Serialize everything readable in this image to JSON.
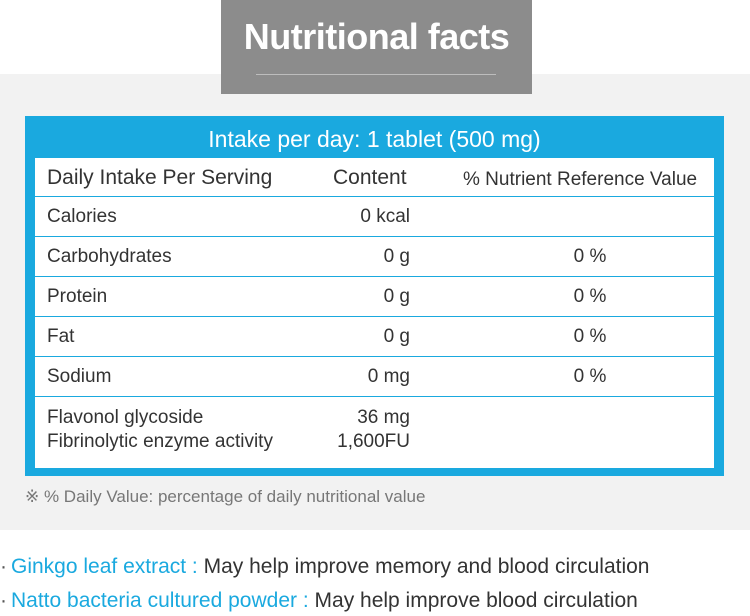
{
  "title": "Nutritional facts",
  "intake_label": "Intake per day: 1 tablet (500 mg)",
  "table": {
    "headers": [
      "Daily Intake Per Serving",
      "Content",
      "% Nutrient Reference Value"
    ],
    "rows": [
      {
        "name": "Calories",
        "content": "0 kcal",
        "pct": ""
      },
      {
        "name": "Carbohydrates",
        "content": "0 g",
        "pct": "0 %"
      },
      {
        "name": "Protein",
        "content": "0 g",
        "pct": "0 %"
      },
      {
        "name": "Fat",
        "content": "0 g",
        "pct": "0 %"
      },
      {
        "name": "Sodium",
        "content": "0 mg",
        "pct": "0 %"
      },
      {
        "name": "Flavonol glycoside",
        "content": "36 mg",
        "pct": ""
      },
      {
        "name": "Fibrinolytic enzyme activity",
        "content": "1,600FU",
        "pct": ""
      }
    ]
  },
  "footnote": "※ % Daily Value: percentage of daily nutritional value",
  "bullets": [
    {
      "dot": "·",
      "ingredient": "Ginkgo leaf extract :",
      "benefit": "May help improve memory and blood circulation"
    },
    {
      "dot": "·",
      "ingredient": "Natto bacteria cultured powder :",
      "benefit": "May help improve blood circulation"
    }
  ],
  "colors": {
    "accent": "#1aa9df",
    "title_tab": "#8c8c8c",
    "panel": "#f2f2f2"
  }
}
